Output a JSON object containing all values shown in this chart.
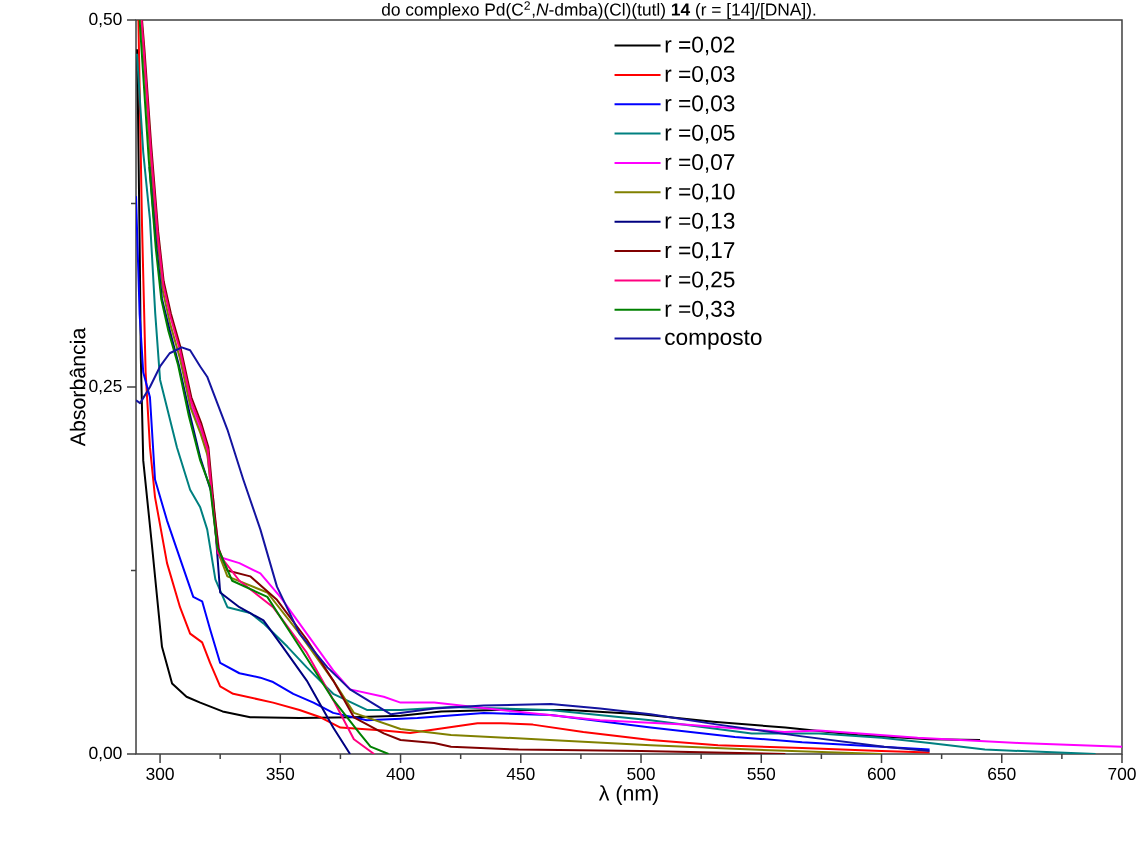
{
  "chart_data": {
    "type": "line",
    "title": "do complexo Pd(C$^{2}$,*N*-dmba)(Cl)(tutl) **14** (r = [14]/[DNA]).",
    "xlabel": "λ (nm)",
    "ylabel": "Absorbância",
    "xlim": [
      290,
      700
    ],
    "ylim": [
      0,
      0.5
    ],
    "xticks": [
      300,
      {
        "value": 325,
        "label": null
      },
      350,
      {
        "value": 375,
        "label": null
      },
      400,
      {
        "value": 425,
        "label": null
      },
      450,
      {
        "value": 475,
        "label": null
      },
      500,
      {
        "value": 525,
        "label": null
      },
      550,
      {
        "value": 575,
        "label": null
      },
      600,
      {
        "value": 625,
        "label": null
      },
      650,
      {
        "value": 675,
        "label": null
      },
      700
    ],
    "yticks": [
      {
        "value": 0,
        "label": "0,00"
      },
      {
        "value": 0.125,
        "label": null
      },
      {
        "value": 0.25,
        "label": "0,25"
      },
      {
        "value": 0.375,
        "label": null
      },
      {
        "value": 0.5,
        "label": "0,50"
      }
    ],
    "legend": "top right",
    "marker": "none",
    "line_style": "solid",
    "series": [
      {
        "name": "r =0,02",
        "color": "#000000",
        "x": [
          290.5,
          291.5,
          292,
          293,
          296.7,
          300.8,
          305,
          311,
          316.7,
          326,
          337.5,
          358,
          380,
          400,
          417,
          440,
          470,
          500,
          530,
          560,
          590,
          620,
          641
        ],
        "values": [
          0.48,
          0.35,
          0.27,
          0.2,
          0.141,
          0.073,
          0.048,
          0.039,
          0.035,
          0.029,
          0.025,
          0.0245,
          0.025,
          0.026,
          0.029,
          0.03,
          0.03,
          0.027,
          0.022,
          0.018,
          0.013,
          0.01,
          0.0095
        ]
      },
      {
        "name": "r =0,03",
        "color": "#ff0000",
        "x": [
          291,
          292.5,
          294,
          295.8,
          297.9,
          302.9,
          308.3,
          312.5,
          317.5,
          320.8,
          325,
          330.4,
          347,
          358,
          366.7,
          375,
          393,
          404,
          432,
          441.7,
          455,
          476,
          504,
          532,
          567,
          600,
          620
        ],
        "values": [
          0.5,
          0.36,
          0.26,
          0.209,
          0.175,
          0.13,
          0.1,
          0.082,
          0.076,
          0.062,
          0.046,
          0.041,
          0.035,
          0.03,
          0.025,
          0.018,
          0.016,
          0.0143,
          0.021,
          0.021,
          0.02,
          0.015,
          0.0095,
          0.006,
          0.004,
          0.002,
          0.001
        ]
      },
      {
        "name": "r =0,03",
        "color": "#0000ff",
        "x": [
          290,
          291.5,
          293,
          295.8,
          297.9,
          302.9,
          309.6,
          313.8,
          317.5,
          320.8,
          325,
          333,
          341.7,
          347,
          355.4,
          363.8,
          372,
          386,
          407,
          434.6,
          462.5,
          504,
          539,
          567,
          600,
          620
        ],
        "values": [
          0.38,
          0.3,
          0.26,
          0.243,
          0.187,
          0.159,
          0.127,
          0.107,
          0.104,
          0.085,
          0.062,
          0.055,
          0.052,
          0.049,
          0.041,
          0.035,
          0.028,
          0.023,
          0.0245,
          0.028,
          0.0266,
          0.018,
          0.0116,
          0.008,
          0.005,
          0.003
        ]
      },
      {
        "name": "r =0,05",
        "color": "#008080",
        "x": [
          290.4,
          293,
          295.8,
          298,
          300,
          307,
          312.5,
          316.7,
          319.6,
          323,
          328,
          337.5,
          343,
          353,
          361,
          372,
          386,
          400,
          421,
          462,
          504,
          546,
          574,
          600,
          620,
          643,
          689
        ],
        "values": [
          0.477,
          0.41,
          0.364,
          0.3,
          0.255,
          0.209,
          0.18,
          0.168,
          0.153,
          0.119,
          0.1,
          0.096,
          0.089,
          0.073,
          0.059,
          0.041,
          0.03,
          0.03,
          0.032,
          0.03,
          0.023,
          0.014,
          0.014,
          0.011,
          0.0075,
          0.003,
          0.0
        ]
      },
      {
        "name": "r =0,07",
        "color": "#ff00ff",
        "x": [
          308,
          312.5,
          316.7,
          319.6,
          322,
          325,
          333,
          341.7,
          350,
          361,
          372,
          379,
          393,
          400,
          414,
          441.7,
          483,
          518,
          559.6,
          574,
          615,
          657,
          700
        ],
        "values": [
          0.273,
          0.239,
          0.221,
          0.205,
          0.17,
          0.134,
          0.13,
          0.123,
          0.107,
          0.082,
          0.057,
          0.044,
          0.039,
          0.035,
          0.035,
          0.03,
          0.023,
          0.02,
          0.015,
          0.016,
          0.011,
          0.0075,
          0.005
        ]
      },
      {
        "name": "r =0,10",
        "color": "#808000",
        "x": [
          292.2,
          293.2,
          296,
          299,
          301.2,
          304.2,
          308.2,
          312.7,
          316.9,
          319.8,
          322,
          324,
          328,
          344.6,
          358,
          372,
          380.6,
          400,
          421,
          462,
          504,
          546,
          600
        ],
        "values": [
          0.5,
          0.475,
          0.405,
          0.348,
          0.315,
          0.293,
          0.27,
          0.236,
          0.218,
          0.203,
          0.168,
          0.138,
          0.121,
          0.11,
          0.082,
          0.05,
          0.028,
          0.017,
          0.013,
          0.0095,
          0.006,
          0.003,
          0.0
        ]
      },
      {
        "name": "r =0,13",
        "color": "#000080",
        "x": [
          295.6,
          298.5,
          300.8,
          303.8,
          307.8,
          312.3,
          316.7,
          322,
          325,
          333,
          343,
          351,
          361,
          372,
          379
        ],
        "values": [
          0.4,
          0.345,
          0.31,
          0.29,
          0.265,
          0.232,
          0.202,
          0.175,
          0.11,
          0.1,
          0.091,
          0.073,
          0.05,
          0.018,
          0.0
        ]
      },
      {
        "name": "r =0,17",
        "color": "#800000",
        "x": [
          292.5,
          293.5,
          296.3,
          299.2,
          301.5,
          304.5,
          308.5,
          313,
          317.2,
          320.1,
          322.3,
          324.3,
          328,
          337.5,
          348.6,
          361,
          372,
          380.6,
          393,
          400,
          414,
          421,
          449,
          500,
          560
        ],
        "values": [
          0.5,
          0.48,
          0.415,
          0.356,
          0.322,
          0.3,
          0.277,
          0.243,
          0.225,
          0.209,
          0.17,
          0.14,
          0.125,
          0.121,
          0.105,
          0.078,
          0.05,
          0.025,
          0.014,
          0.0095,
          0.0075,
          0.005,
          0.003,
          0.002,
          0.0
        ]
      },
      {
        "name": "r =0,25",
        "color": "#ff0080",
        "x": [
          292.3,
          293.3,
          296.1,
          299,
          301.3,
          304.3,
          308.3,
          312.8,
          317,
          319.9,
          322,
          324,
          333,
          347,
          361,
          372,
          380.6,
          389
        ],
        "values": [
          0.5,
          0.478,
          0.412,
          0.354,
          0.32,
          0.298,
          0.275,
          0.241,
          0.223,
          0.207,
          0.168,
          0.137,
          0.118,
          0.1,
          0.069,
          0.037,
          0.01,
          0.0
        ]
      },
      {
        "name": "r =0,33",
        "color": "#008000",
        "x": [
          291.5,
          292.5,
          295.3,
          298.2,
          300.5,
          303.5,
          307.5,
          312,
          316.7,
          320.8,
          323.8,
          330,
          344.6,
          358,
          372,
          383,
          387.5,
          395
        ],
        "values": [
          0.5,
          0.475,
          0.405,
          0.345,
          0.31,
          0.288,
          0.265,
          0.23,
          0.2,
          0.182,
          0.141,
          0.118,
          0.107,
          0.073,
          0.037,
          0.014,
          0.005,
          0.0
        ]
      },
      {
        "name": "composto",
        "color": "#1414a0",
        "x": [
          290,
          291.7,
          295.8,
          300,
          304,
          309,
          312.5,
          316.7,
          319.6,
          323.8,
          328,
          334.6,
          341.7,
          348.6,
          358,
          369.6,
          379,
          396,
          414,
          434.6,
          462.5,
          483,
          504,
          532,
          567,
          601,
          620
        ],
        "values": [
          0.241,
          0.239,
          0.25,
          0.264,
          0.273,
          0.277,
          0.275,
          0.264,
          0.257,
          0.239,
          0.221,
          0.187,
          0.153,
          0.114,
          0.082,
          0.059,
          0.044,
          0.027,
          0.031,
          0.033,
          0.034,
          0.031,
          0.027,
          0.02,
          0.012,
          0.005,
          0.002
        ]
      }
    ]
  }
}
